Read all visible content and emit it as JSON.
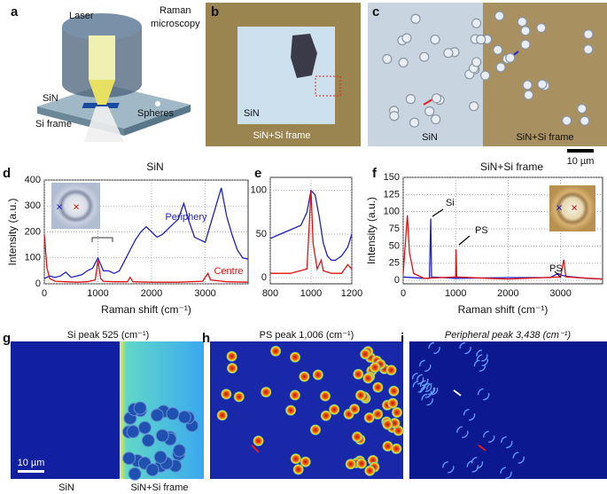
{
  "panel_labels": [
    "a",
    "b",
    "c",
    "d",
    "e",
    "f",
    "g",
    "h",
    "i"
  ],
  "panel_a": {
    "laser": "Laser",
    "raman": "Raman",
    "microscopy": "microscopy",
    "sin": "SiN",
    "si_frame": "Si frame",
    "spheres": "Spheres"
  },
  "panel_b": {
    "sin": "SiN",
    "frame": "SiN+Si frame"
  },
  "panel_c": {
    "sin": "SiN",
    "frame": "SiN+Si frame",
    "scale": "10 µm"
  },
  "panel_g": {
    "title": "Si peak 525 (cm⁻¹)",
    "scale": "10 µm",
    "sin": "SiN",
    "frame": "SiN+Si frame"
  },
  "panel_h": {
    "title": "PS peak 1,006 (cm⁻¹)"
  },
  "panel_i": {
    "title": "Peripheral peak 3,438 (cm⁻¹)"
  },
  "chart_data": [
    {
      "type": "line",
      "title": "SiN",
      "x_label": "Raman shift (cm⁻¹)",
      "y_label": "Intensity (a.u.)",
      "xlim": [
        0,
        3800
      ],
      "ylim": [
        0,
        400
      ],
      "xticks": [
        0,
        1000,
        2000,
        3000
      ],
      "yticks": [
        0,
        100,
        200,
        300,
        400
      ],
      "grid": true,
      "series": [
        {
          "name": "Periphery",
          "color": "#1f1fc8",
          "x": [
            0,
            100,
            200,
            300,
            400,
            500,
            600,
            700,
            800,
            900,
            1000,
            1050,
            1100,
            1200,
            1300,
            1400,
            1500,
            1600,
            1700,
            1800,
            1900,
            2000,
            2100,
            2200,
            2300,
            2400,
            2500,
            2600,
            2700,
            2800,
            2900,
            3000,
            3100,
            3200,
            3300,
            3400,
            3500,
            3600,
            3700,
            3800
          ],
          "values": [
            20,
            30,
            25,
            30,
            45,
            25,
            30,
            35,
            50,
            60,
            100,
            75,
            50,
            50,
            40,
            50,
            90,
            130,
            170,
            200,
            220,
            200,
            180,
            190,
            210,
            230,
            250,
            310,
            240,
            180,
            170,
            160,
            230,
            300,
            370,
            260,
            190,
            130,
            100,
            95
          ]
        },
        {
          "name": "Centre",
          "color": "#e01010",
          "x": [
            0,
            50,
            100,
            200,
            400,
            600,
            800,
            950,
            1000,
            1050,
            1100,
            1300,
            1550,
            1600,
            1650,
            2000,
            2500,
            2950,
            3050,
            3100,
            3400,
            3800
          ],
          "values": [
            190,
            60,
            20,
            10,
            8,
            6,
            8,
            15,
            90,
            20,
            10,
            8,
            8,
            25,
            8,
            6,
            6,
            10,
            40,
            15,
            8,
            6
          ]
        }
      ]
    },
    {
      "type": "line",
      "xlim": [
        800,
        1200
      ],
      "ylim": [
        -7,
        115
      ],
      "xticks": [
        800,
        1000,
        1200
      ],
      "yticks": [
        0,
        50,
        100
      ],
      "grid": true,
      "series": [
        {
          "color": "#1f1fc8",
          "x": [
            800,
            850,
            900,
            950,
            980,
            1000,
            1020,
            1040,
            1060,
            1080,
            1100,
            1120,
            1150,
            1180,
            1200
          ],
          "values": [
            45,
            50,
            55,
            60,
            75,
            100,
            95,
            70,
            40,
            25,
            20,
            20,
            25,
            35,
            50
          ]
        },
        {
          "color": "#e01010",
          "x": [
            800,
            900,
            980,
            1000,
            1010,
            1030,
            1050,
            1060,
            1100,
            1150,
            1180,
            1200
          ],
          "values": [
            5,
            5,
            10,
            100,
            40,
            10,
            20,
            8,
            5,
            5,
            15,
            10
          ]
        }
      ]
    },
    {
      "type": "line",
      "title": "SiN+Si frame",
      "x_label": "Raman shift (cm⁻¹)",
      "y_label": "Intensity (a.u.)",
      "xlim": [
        0,
        3800
      ],
      "ylim": [
        -5,
        150
      ],
      "xticks": [
        0,
        1000,
        2000,
        3000
      ],
      "yticks": [
        0,
        25,
        50,
        75,
        100,
        125,
        150
      ],
      "grid": true,
      "annotations": [
        "Si",
        "PS",
        "PS"
      ],
      "series": [
        {
          "color": "#1f1fc8",
          "x": [
            0,
            400,
            500,
            525,
            540,
            1000,
            2000,
            2800,
            2950,
            3000,
            3100,
            3500,
            3800
          ],
          "values": [
            5,
            3,
            3,
            90,
            5,
            3,
            4,
            4,
            10,
            8,
            6,
            3,
            2
          ]
        },
        {
          "color": "#e01010",
          "x": [
            0,
            80,
            120,
            200,
            400,
            1000,
            1006,
            1020,
            1600,
            2000,
            3000,
            3060,
            3100,
            3800
          ],
          "values": [
            10,
            95,
            40,
            10,
            3,
            5,
            45,
            5,
            3,
            2,
            5,
            30,
            5,
            2
          ]
        }
      ]
    }
  ]
}
